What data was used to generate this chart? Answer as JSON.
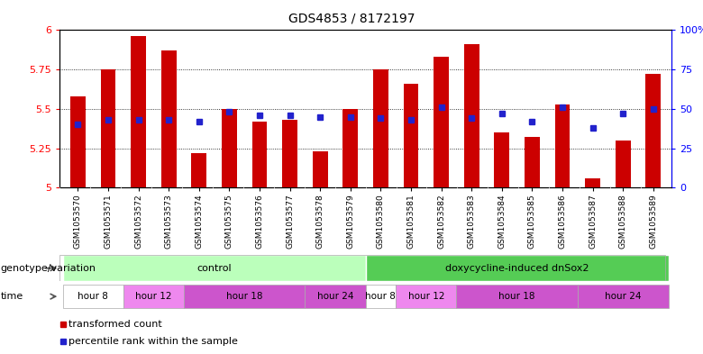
{
  "title": "GDS4853 / 8172197",
  "samples": [
    "GSM1053570",
    "GSM1053571",
    "GSM1053572",
    "GSM1053573",
    "GSM1053574",
    "GSM1053575",
    "GSM1053576",
    "GSM1053577",
    "GSM1053578",
    "GSM1053579",
    "GSM1053580",
    "GSM1053581",
    "GSM1053582",
    "GSM1053583",
    "GSM1053584",
    "GSM1053585",
    "GSM1053586",
    "GSM1053587",
    "GSM1053588",
    "GSM1053589"
  ],
  "bar_values": [
    5.58,
    5.75,
    5.96,
    5.87,
    5.22,
    5.5,
    5.42,
    5.43,
    5.23,
    5.5,
    5.75,
    5.66,
    5.83,
    5.91,
    5.35,
    5.32,
    5.53,
    5.06,
    5.3,
    5.72
  ],
  "dot_pct": [
    40,
    43,
    43,
    43,
    42,
    48,
    46,
    46,
    45,
    45,
    44,
    43,
    51,
    44,
    47,
    42,
    51,
    38,
    47,
    50
  ],
  "bar_color": "#cc0000",
  "dot_color": "#2222cc",
  "ymin": 5.0,
  "ymax": 6.0,
  "yticks": [
    5.0,
    5.25,
    5.5,
    5.75,
    6.0
  ],
  "ytick_labels": [
    "5",
    "5.25",
    "5.5",
    "5.75",
    "6"
  ],
  "y2ticks": [
    0,
    25,
    50,
    75,
    100
  ],
  "y2tick_labels": [
    "0",
    "25",
    "50",
    "75",
    "100%"
  ],
  "genotype_groups": [
    {
      "label": "control",
      "start": 0,
      "end": 9,
      "color": "#bbffbb"
    },
    {
      "label": "doxycycline-induced dnSox2",
      "start": 10,
      "end": 19,
      "color": "#55cc55"
    }
  ],
  "time_groups": [
    {
      "label": "hour 8",
      "start": 0,
      "end": 1,
      "color": "#ffffff"
    },
    {
      "label": "hour 12",
      "start": 2,
      "end": 3,
      "color": "#ee88ee"
    },
    {
      "label": "hour 18",
      "start": 4,
      "end": 7,
      "color": "#cc55cc"
    },
    {
      "label": "hour 24",
      "start": 8,
      "end": 9,
      "color": "#cc55cc"
    },
    {
      "label": "hour 8",
      "start": 10,
      "end": 10,
      "color": "#ffffff"
    },
    {
      "label": "hour 12",
      "start": 11,
      "end": 12,
      "color": "#ee88ee"
    },
    {
      "label": "hour 18",
      "start": 13,
      "end": 16,
      "color": "#cc55cc"
    },
    {
      "label": "hour 24",
      "start": 17,
      "end": 19,
      "color": "#cc55cc"
    }
  ],
  "legend_transformed": "transformed count",
  "legend_percentile": "percentile rank within the sample",
  "genotype_label": "genotype/variation",
  "time_label": "time",
  "bg_color": "#e8e8e8"
}
